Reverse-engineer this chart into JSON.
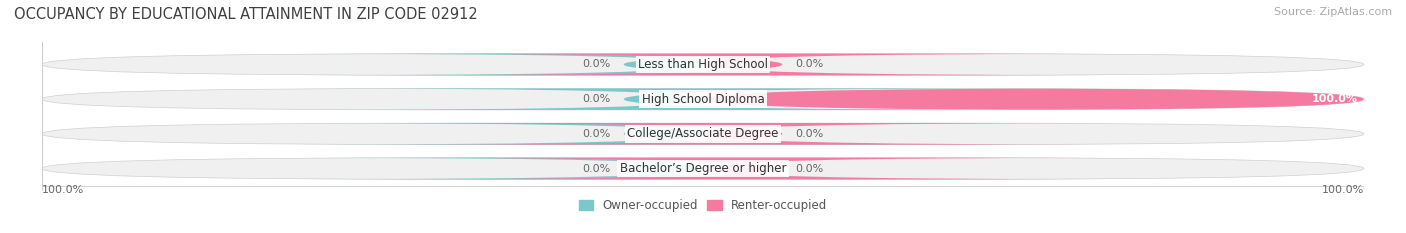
{
  "title": "OCCUPANCY BY EDUCATIONAL ATTAINMENT IN ZIP CODE 02912",
  "source": "Source: ZipAtlas.com",
  "categories": [
    "Less than High School",
    "High School Diploma",
    "College/Associate Degree",
    "Bachelor’s Degree or higher"
  ],
  "owner_values": [
    0.0,
    0.0,
    0.0,
    0.0
  ],
  "renter_values": [
    0.0,
    100.0,
    0.0,
    0.0
  ],
  "owner_color": "#7bc8c8",
  "renter_color": "#f47aa0",
  "bar_bg_color": "#f0f0f0",
  "bar_bg_color2": "#e8e8e8",
  "title_fontsize": 10.5,
  "source_fontsize": 8,
  "label_fontsize": 8,
  "cat_fontsize": 8.5,
  "legend_fontsize": 8.5,
  "fig_width": 14.06,
  "fig_height": 2.33,
  "dpi": 100
}
